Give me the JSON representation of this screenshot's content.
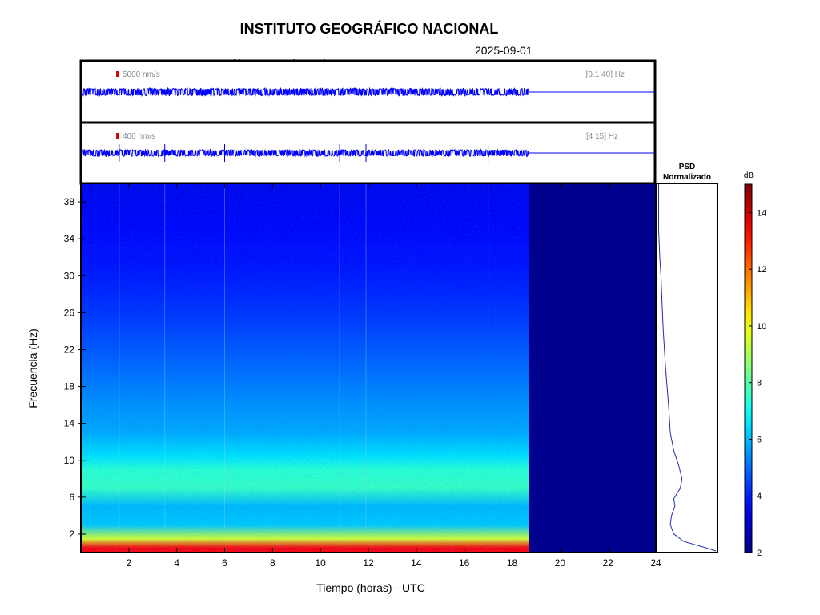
{
  "header": {
    "title": "INSTITUTO GEOGRÁFICO NACIONAL",
    "station": "Estación:  EFAM ( HHZ ) - LANZAROTE",
    "date": "2025-09-01"
  },
  "chart_data": [
    {
      "type": "line",
      "panel": "broadband waveform",
      "scale_label": "5000 nm/s",
      "band_label": "[0.1 40] Hz",
      "xlim": [
        0,
        24
      ],
      "data_end_hour": 18.7,
      "envelope_color": "#0000ff"
    },
    {
      "type": "line",
      "panel": "filtered waveform",
      "scale_label": "400 nm/s",
      "band_label": "[4 15] Hz",
      "xlim": [
        0,
        24
      ],
      "data_end_hour": 18.7,
      "spike_hours": [
        1.6,
        3.5,
        6.0,
        10.8,
        11.9,
        17.0
      ]
    },
    {
      "type": "heatmap",
      "panel": "spectrogram",
      "xlabel": "Tiempo (horas) - UTC",
      "ylabel": "Frecuencia  (Hz)",
      "xlim": [
        0,
        24
      ],
      "ylim": [
        0,
        40
      ],
      "xticks": [
        "2",
        "4",
        "6",
        "8",
        "10",
        "12",
        "14",
        "16",
        "18",
        "20",
        "22",
        "24"
      ],
      "yticks": [
        "2",
        "6",
        "10",
        "14",
        "18",
        "22",
        "26",
        "30",
        "34",
        "38"
      ],
      "data_end_hour": 18.7,
      "freq_profile_db": [
        {
          "f": 0.5,
          "db": 13.5
        },
        {
          "f": 1.5,
          "db": 9.5
        },
        {
          "f": 3,
          "db": 6.2
        },
        {
          "f": 5,
          "db": 6.0
        },
        {
          "f": 7,
          "db": 7.6
        },
        {
          "f": 9,
          "db": 7.4
        },
        {
          "f": 10.5,
          "db": 6.5
        },
        {
          "f": 13,
          "db": 5.8
        },
        {
          "f": 16,
          "db": 5.5
        },
        {
          "f": 20,
          "db": 5.0
        },
        {
          "f": 25,
          "db": 4.4
        },
        {
          "f": 30,
          "db": 3.9
        },
        {
          "f": 35,
          "db": 3.6
        },
        {
          "f": 40,
          "db": 3.4
        }
      ]
    },
    {
      "type": "line",
      "panel": "psd",
      "title_line1": "PSD",
      "title_line2": "Normalizado",
      "xlim": [
        0,
        1
      ],
      "psd": [
        {
          "f": 0.2,
          "v": 1.0
        },
        {
          "f": 0.6,
          "v": 0.78
        },
        {
          "f": 1.2,
          "v": 0.45
        },
        {
          "f": 2.0,
          "v": 0.28
        },
        {
          "f": 3.0,
          "v": 0.22
        },
        {
          "f": 4.0,
          "v": 0.24
        },
        {
          "f": 5.0,
          "v": 0.3
        },
        {
          "f": 5.8,
          "v": 0.28
        },
        {
          "f": 7.0,
          "v": 0.39
        },
        {
          "f": 8.0,
          "v": 0.42
        },
        {
          "f": 9.5,
          "v": 0.36
        },
        {
          "f": 11.0,
          "v": 0.28
        },
        {
          "f": 13.0,
          "v": 0.22
        },
        {
          "f": 16.0,
          "v": 0.19
        },
        {
          "f": 20.0,
          "v": 0.14
        },
        {
          "f": 24.0,
          "v": 0.1
        },
        {
          "f": 27.0,
          "v": 0.08
        },
        {
          "f": 30.0,
          "v": 0.06
        },
        {
          "f": 32.0,
          "v": 0.04
        },
        {
          "f": 35.0,
          "v": 0.02
        },
        {
          "f": 38.0,
          "v": 0.02
        },
        {
          "f": 40.0,
          "v": 0.02
        }
      ]
    },
    {
      "type": "heatmap",
      "panel": "colorbar",
      "title": "dB",
      "ylim": [
        2,
        15
      ],
      "ticks": [
        "2",
        "4",
        "6",
        "8",
        "10",
        "12",
        "14"
      ]
    }
  ]
}
